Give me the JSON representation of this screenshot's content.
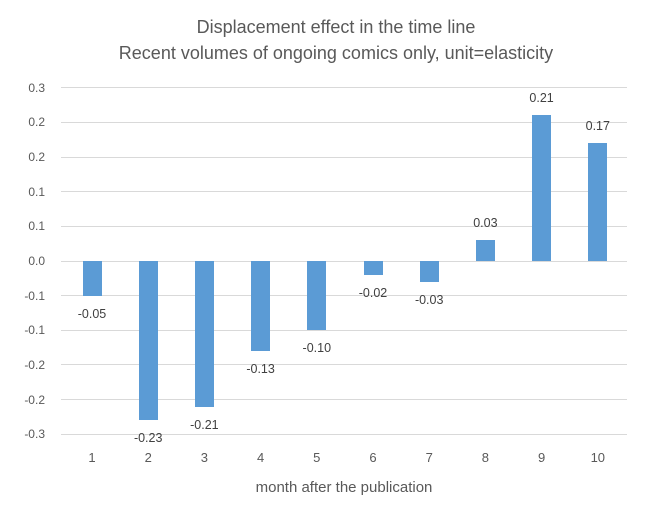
{
  "title": "Displacement effect in the time line",
  "subtitle": "Recent volumes of ongoing comics only, unit=elasticity",
  "x_axis_title": "month after the publication",
  "colors": {
    "bar": "#5b9bd5",
    "gridline": "#d9d9d9",
    "axis_text": "#595959",
    "data_label_text": "#404040",
    "background": "#ffffff"
  },
  "chart_data": {
    "type": "bar",
    "title": "Displacement effect in the time line",
    "subtitle": "Recent volumes of ongoing comics only, unit=elasticity",
    "categories": [
      "1",
      "2",
      "3",
      "4",
      "5",
      "6",
      "7",
      "8",
      "9",
      "10"
    ],
    "values": [
      -0.05,
      -0.23,
      -0.21,
      -0.13,
      -0.1,
      -0.02,
      -0.03,
      0.03,
      0.21,
      0.17
    ],
    "data_labels": [
      "-0.05",
      "-0.23",
      "-0.21",
      "-0.13",
      "-0.10",
      "-0.02",
      "-0.03",
      "0.03",
      "0.21",
      "0.17"
    ],
    "xlabel": "month after the publication",
    "ylabel": "",
    "ylim": [
      -0.25,
      0.25
    ],
    "y_major_unit": 0.05,
    "y_tick_labels": [
      "0.3",
      "0.2",
      "0.2",
      "0.1",
      "0.1",
      "0.0",
      "-0.1",
      "-0.1",
      "-0.2",
      "-0.2",
      "-0.3"
    ],
    "grid": true,
    "legend": false,
    "bar_label_position": "outside-end"
  }
}
